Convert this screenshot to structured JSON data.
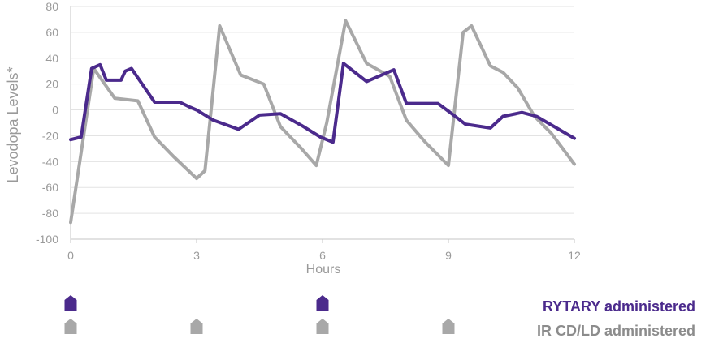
{
  "chart_data": {
    "type": "line",
    "title": "",
    "xlabel": "Hours",
    "ylabel": "Levodopa Levels*",
    "xlim": [
      0,
      12
    ],
    "ylim": [
      -100,
      80
    ],
    "xticks": [
      0,
      3,
      6,
      9,
      12
    ],
    "yticks": [
      80,
      60,
      40,
      20,
      0,
      -20,
      -40,
      -60,
      -80,
      -100
    ],
    "grid": "horizontal",
    "series": [
      {
        "name": "IR CD/LD",
        "color": "#a8a8a8",
        "x": [
          0,
          0.55,
          1.05,
          1.6,
          2.0,
          2.45,
          3.0,
          3.2,
          3.55,
          4.05,
          4.6,
          5.0,
          5.5,
          5.85,
          6.1,
          6.55,
          7.05,
          7.6,
          8.0,
          8.45,
          9.0,
          9.35,
          9.55,
          10.0,
          10.3,
          10.65,
          11.05,
          11.45,
          12.0
        ],
        "y": [
          -87,
          32,
          9,
          7,
          -21,
          -36,
          -53,
          -47,
          65,
          27,
          20,
          -13,
          -30,
          -43,
          -10,
          69,
          36,
          26,
          -8,
          -25,
          -43,
          60,
          65,
          34,
          29,
          17,
          -5,
          -18,
          -42
        ]
      },
      {
        "name": "RYTARY",
        "color": "#4b2a8c",
        "x": [
          0,
          0.25,
          0.5,
          0.7,
          0.85,
          1.05,
          1.2,
          1.3,
          1.45,
          2.0,
          2.6,
          2.85,
          3.0,
          3.4,
          4.0,
          4.5,
          5.0,
          5.5,
          5.95,
          6.25,
          6.5,
          7.05,
          7.7,
          8.0,
          8.75,
          9.0,
          9.4,
          10.0,
          10.3,
          10.75,
          11.1,
          12.0
        ],
        "y": [
          -23,
          -21,
          32,
          35,
          23,
          23,
          23,
          30,
          32,
          6,
          6,
          2,
          0,
          -8,
          -15,
          -4,
          -3,
          -12,
          -21,
          -25,
          36,
          22,
          31,
          5,
          5,
          -1,
          -11,
          -14,
          -5,
          -2,
          -5,
          -22
        ]
      }
    ],
    "dosing": {
      "rytary_hours": [
        0,
        6
      ],
      "ir_hours": [
        0,
        3,
        6,
        9
      ]
    },
    "legend": {
      "rytary": "RYTARY administered",
      "ir": "IR CD/LD administered"
    }
  }
}
